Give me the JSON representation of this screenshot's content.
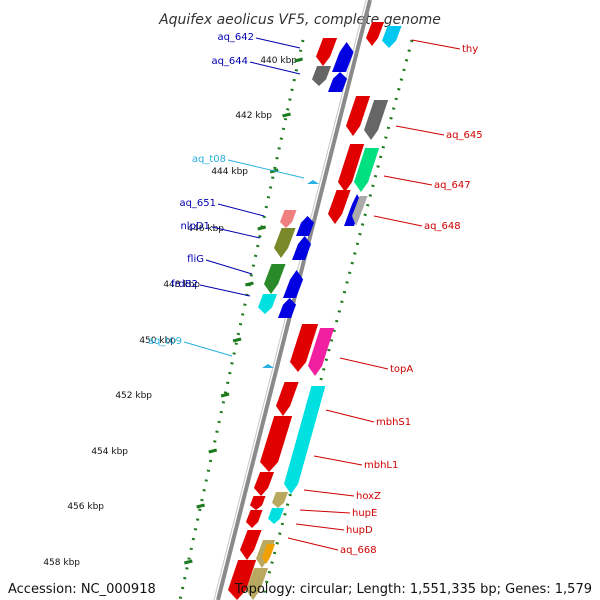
{
  "title": "Aquifex aeolicus VF5, complete genome",
  "footer": {
    "accession": "Accession: NC_000918",
    "topology": "Topology: circular; Length: 1,551,335 bp; Genes: 1,579"
  },
  "colors": {
    "backbone": "#8a8a8a",
    "ticks": "#1e7a1e",
    "left_labels": "#0000b0",
    "trna_labels": "#2ab0e0",
    "right_labels": "#d00000"
  },
  "scale_ticks": [
    "440 kbp",
    "442 kbp",
    "444 kbp",
    "446 kbp",
    "448 kbp",
    "450 kbp",
    "452 kbp",
    "454 kbp",
    "456 kbp",
    "458 kbp"
  ],
  "left_labels": [
    {
      "name": "aq_642",
      "color": "#0000b0"
    },
    {
      "name": "aq_644",
      "color": "#0000b0"
    },
    {
      "name": "aq_t08",
      "color": "#2ab0e0"
    },
    {
      "name": "aq_651",
      "color": "#0000b0"
    },
    {
      "name": "nlpD1",
      "color": "#0000b0"
    },
    {
      "name": "fliG",
      "color": "#0000b0"
    },
    {
      "name": "frdB2",
      "color": "#0000b0"
    },
    {
      "name": "aq_t09",
      "color": "#2ab0e0"
    }
  ],
  "right_labels": [
    {
      "name": "thy"
    },
    {
      "name": "aq_645"
    },
    {
      "name": "aq_647"
    },
    {
      "name": "aq_648"
    },
    {
      "name": "topA"
    },
    {
      "name": "mbhS1"
    },
    {
      "name": "mbhL1"
    },
    {
      "name": "hoxZ"
    },
    {
      "name": "hupE"
    },
    {
      "name": "hupD"
    },
    {
      "name": "aq_668"
    }
  ]
}
